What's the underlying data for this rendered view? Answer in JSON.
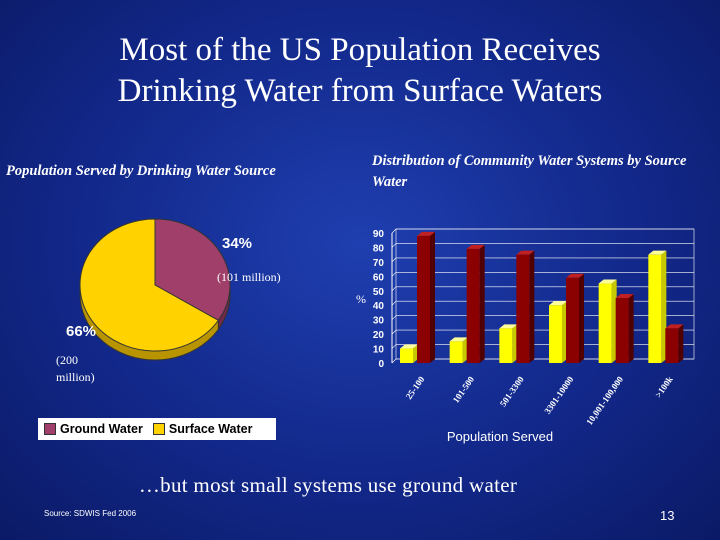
{
  "slide": {
    "title_lines": [
      "Most of the US Population Receives",
      "Drinking Water from Surface Waters"
    ],
    "footer_text": "…but most small systems use ground water",
    "source": "Source: SDWIS Fed 2006",
    "slide_number": "13"
  },
  "colors": {
    "ground_water": "#a0406a",
    "surface_water": "#ffd200",
    "bar_dark": "#8b0000",
    "bar_light": "#ffff00"
  },
  "chart_data": [
    {
      "type": "pie",
      "title": "Population Served by Drinking Water Source",
      "slices": [
        {
          "name": "Ground Water",
          "value": 34,
          "label": "34%",
          "note": "(101 million)"
        },
        {
          "name": "Surface Water",
          "value": 66,
          "label": "66%",
          "note": "(200 million)"
        }
      ],
      "legend": [
        "Ground Water",
        "Surface Water"
      ],
      "legend_position": "bottom"
    },
    {
      "type": "bar",
      "title": "Distribution of Community Water Systems  by Source Water",
      "categories": [
        "25-100",
        "101-500",
        "501-3300",
        "3301-10000",
        "10,001-100,000",
        ">100k"
      ],
      "series": [
        {
          "values": [
            10,
            15,
            24,
            40,
            55,
            75
          ]
        },
        {
          "values": [
            88,
            79,
            75,
            59,
            45,
            24
          ]
        }
      ],
      "ylabel": "%",
      "xlabel": "Population Served",
      "ylim": [
        0,
        90
      ],
      "yticks": [
        0,
        10,
        20,
        30,
        40,
        50,
        60,
        70,
        80,
        90
      ],
      "grid": true
    }
  ]
}
